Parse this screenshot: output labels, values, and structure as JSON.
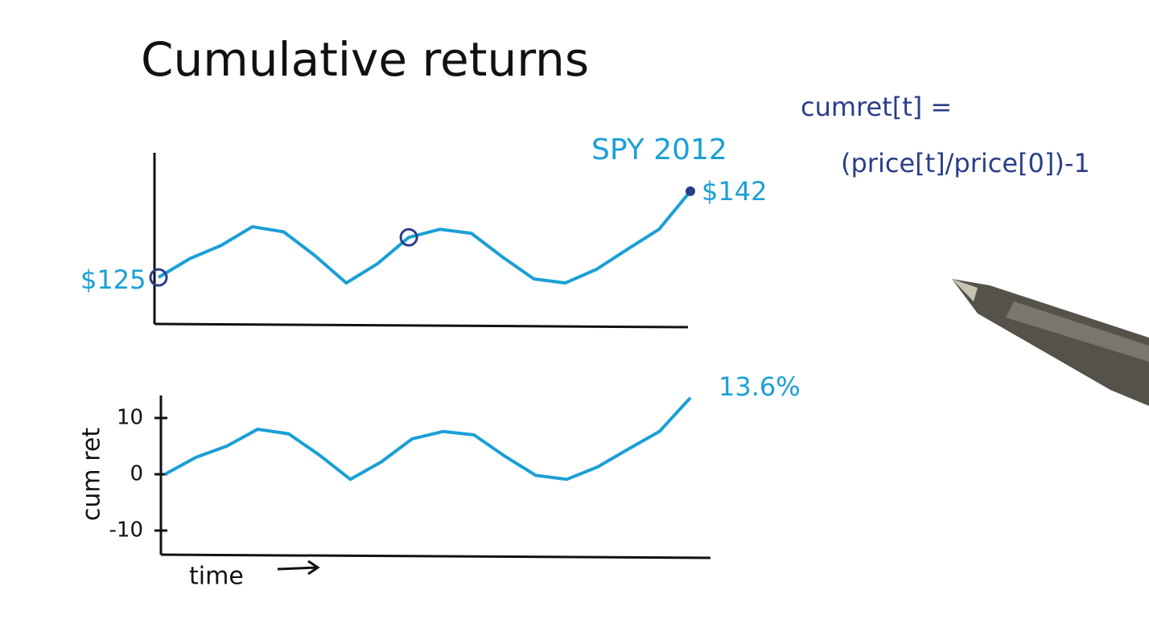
{
  "chart_data": [
    {
      "type": "line",
      "title": "Cumulative returns",
      "annotations": [
        "SPY 2012",
        "$125",
        "$142",
        "cumret[t] =",
        "(price[t]/price[0])-1"
      ],
      "values": [
        125.0,
        128.7,
        131.3,
        135.0,
        134.0,
        129.3,
        123.9,
        127.7,
        132.9,
        134.5,
        133.7,
        129.0,
        124.7,
        123.9,
        126.6,
        130.6,
        134.5,
        142.0
      ],
      "color": "#1b9fd6",
      "ylim": [
        115.5,
        149.6
      ]
    },
    {
      "type": "line",
      "ylabel": "cum ret",
      "xlabel": "time",
      "values": [
        0.0,
        3.0,
        5.0,
        8.0,
        7.2,
        3.4,
        -0.9,
        2.2,
        6.3,
        7.6,
        7.0,
        3.2,
        -0.2,
        -0.9,
        1.3,
        4.5,
        7.6,
        13.6
      ],
      "value_labels": [
        null,
        null,
        null,
        null,
        null,
        null,
        null,
        null,
        null,
        null,
        null,
        null,
        null,
        null,
        null,
        null,
        null,
        "13.6%"
      ],
      "color": "#1b9fd6",
      "ylim": [
        -14,
        14
      ],
      "yticks": [
        -10,
        0,
        10
      ]
    }
  ]
}
